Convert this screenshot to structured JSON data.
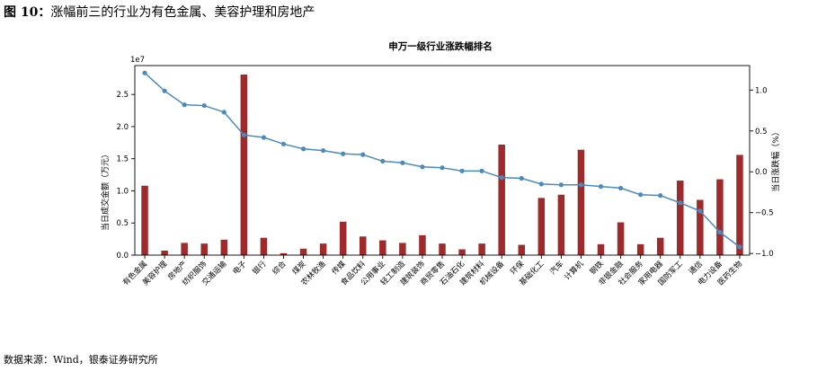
{
  "figure": {
    "number": "图 10：",
    "caption": "涨幅前三的行业为有色金属、美容护理和房地产",
    "source": "数据来源：Wind，银泰证券研究所"
  },
  "chart_data": {
    "type": "bar",
    "title": "申万一级行业涨跌幅排名",
    "ylabel_left": "当日成交金额（万元）",
    "ylabel_right": "当日涨跌幅（%）",
    "left_axis_multiplier": "1e7",
    "ylim_left": [
      0,
      29500000
    ],
    "ylim_right": [
      -1.02,
      1.3
    ],
    "yticks_left": [
      0,
      5000000,
      10000000,
      15000000,
      20000000,
      25000000
    ],
    "yticklabels_left": [
      "0.0",
      "0.5",
      "1.0",
      "1.5",
      "2.0",
      "2.5"
    ],
    "yticks_right": [
      -1.0,
      -0.5,
      0.0,
      0.5,
      1.0
    ],
    "yticklabels_right": [
      "−1.0",
      "−0.5",
      "0.0",
      "0.5",
      "1.0"
    ],
    "categories": [
      "有色金属",
      "美容护理",
      "房地产",
      "纺织服饰",
      "交通运输",
      "电子",
      "银行",
      "综合",
      "煤炭",
      "农林牧渔",
      "传媒",
      "食品饮料",
      "公用事业",
      "轻工制造",
      "建筑装饰",
      "商贸零售",
      "石油石化",
      "建筑材料",
      "机械设备",
      "环保",
      "基础化工",
      "汽车",
      "计算机",
      "钢铁",
      "非银金融",
      "社会服务",
      "家用电器",
      "国防军工",
      "通信",
      "电力设备",
      "医药生物"
    ],
    "series": [
      {
        "kind": "bar",
        "axis": "left",
        "color": "#9e2a2b",
        "values": [
          10800000,
          700000,
          1900000,
          1800000,
          2400000,
          28100000,
          2700000,
          300000,
          1000000,
          1800000,
          5200000,
          2900000,
          2300000,
          1900000,
          3100000,
          1800000,
          900000,
          1800000,
          17200000,
          1600000,
          8900000,
          9400000,
          16400000,
          1700000,
          5100000,
          1700000,
          2700000,
          11600000,
          8600000,
          11800000,
          15600000
        ]
      },
      {
        "kind": "line",
        "axis": "right",
        "color": "#4a8bbd",
        "values": [
          1.21,
          0.99,
          0.82,
          0.81,
          0.73,
          0.45,
          0.42,
          0.34,
          0.28,
          0.26,
          0.22,
          0.21,
          0.13,
          0.11,
          0.06,
          0.05,
          0.01,
          0.01,
          -0.07,
          -0.08,
          -0.15,
          -0.16,
          -0.16,
          -0.18,
          -0.2,
          -0.28,
          -0.29,
          -0.38,
          -0.48,
          -0.74,
          -0.92
        ]
      }
    ],
    "grid": false,
    "legend": "none"
  }
}
